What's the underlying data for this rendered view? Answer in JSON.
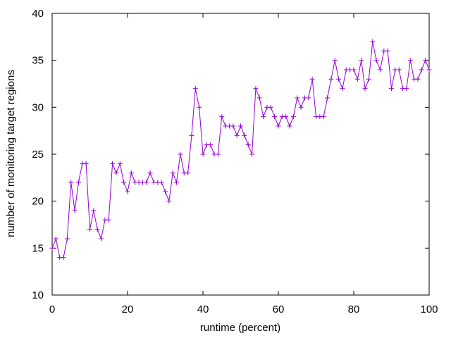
{
  "chart_data": {
    "type": "line",
    "xlabel": "runtime (percent)",
    "ylabel": "number of monitoring target regions",
    "xlim": [
      0,
      100
    ],
    "ylim": [
      10,
      40
    ],
    "x_ticks": [
      0,
      20,
      40,
      60,
      80,
      100
    ],
    "y_ticks": [
      10,
      15,
      20,
      25,
      30,
      35,
      40
    ],
    "x_tick_labels": [
      "0",
      "20",
      "40",
      "60",
      "80",
      "100"
    ],
    "y_tick_labels": [
      "10",
      "15",
      "20",
      "25",
      "30",
      "35",
      "40"
    ],
    "grid": false,
    "marker": "plus",
    "series": [
      {
        "color": "#9400d3",
        "x": [
          0,
          1,
          2,
          3,
          4,
          5,
          6,
          7,
          8,
          9,
          10,
          11,
          12,
          13,
          14,
          15,
          16,
          17,
          18,
          19,
          20,
          21,
          22,
          23,
          24,
          25,
          26,
          27,
          28,
          29,
          30,
          31,
          32,
          33,
          34,
          35,
          36,
          37,
          38,
          39,
          40,
          41,
          42,
          43,
          44,
          45,
          46,
          47,
          48,
          49,
          50,
          51,
          52,
          53,
          54,
          55,
          56,
          57,
          58,
          59,
          60,
          61,
          62,
          63,
          64,
          65,
          66,
          67,
          68,
          69,
          70,
          71,
          72,
          73,
          74,
          75,
          76,
          77,
          78,
          79,
          80,
          81,
          82,
          83,
          84,
          85,
          86,
          87,
          88,
          89,
          90,
          91,
          92,
          93,
          94,
          95,
          96,
          97,
          98,
          99,
          100
        ],
        "y": [
          15,
          16,
          14,
          14,
          16,
          22,
          19,
          22,
          24,
          24,
          17,
          19,
          17,
          16,
          18,
          18,
          24,
          23,
          24,
          22,
          21,
          23,
          22,
          22,
          22,
          22,
          23,
          22,
          22,
          22,
          21,
          20,
          23,
          22,
          25,
          23,
          23,
          27,
          32,
          30,
          25,
          26,
          26,
          25,
          25,
          29,
          28,
          28,
          28,
          27,
          28,
          27,
          26,
          25,
          32,
          31,
          29,
          30,
          30,
          29,
          28,
          29,
          29,
          28,
          29,
          31,
          30,
          31,
          31,
          33,
          29,
          29,
          29,
          31,
          33,
          35,
          33,
          32,
          34,
          34,
          34,
          33,
          35,
          32,
          33,
          37,
          35,
          34,
          36,
          36,
          32,
          34,
          34,
          32,
          32,
          35,
          33,
          33,
          34,
          35,
          34
        ]
      }
    ]
  }
}
